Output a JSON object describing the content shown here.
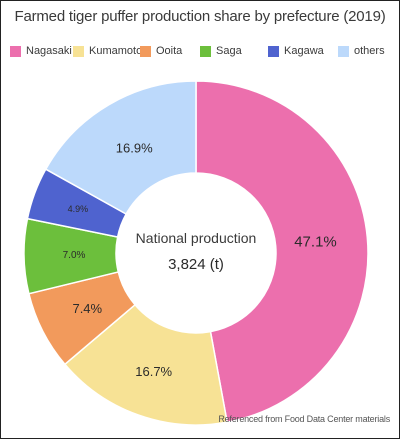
{
  "chart_data": {
    "type": "pie",
    "donut": true,
    "title": "Farmed tiger puffer production share by prefecture (2019)",
    "center_label": "National production",
    "center_value": "3,824 (t)",
    "source": "Referenced from Food Data Center materials",
    "legend_position": "top",
    "slices": [
      {
        "name": "Nagasaki",
        "value": 47.1,
        "label": "47.1%",
        "color": "#ec6fad"
      },
      {
        "name": "Kumamoto",
        "value": 16.7,
        "label": "16.7%",
        "color": "#f7e295"
      },
      {
        "name": "Ooita",
        "value": 7.4,
        "label": "7.4%",
        "color": "#f29a5c"
      },
      {
        "name": "Saga",
        "value": 7.0,
        "label": "7.0%",
        "color": "#6cbf3c"
      },
      {
        "name": "Kagawa",
        "value": 4.9,
        "label": "4.9%",
        "color": "#4f63cf"
      },
      {
        "name": "others",
        "value": 16.9,
        "label": "16.9%",
        "color": "#bcd9fb"
      }
    ]
  }
}
